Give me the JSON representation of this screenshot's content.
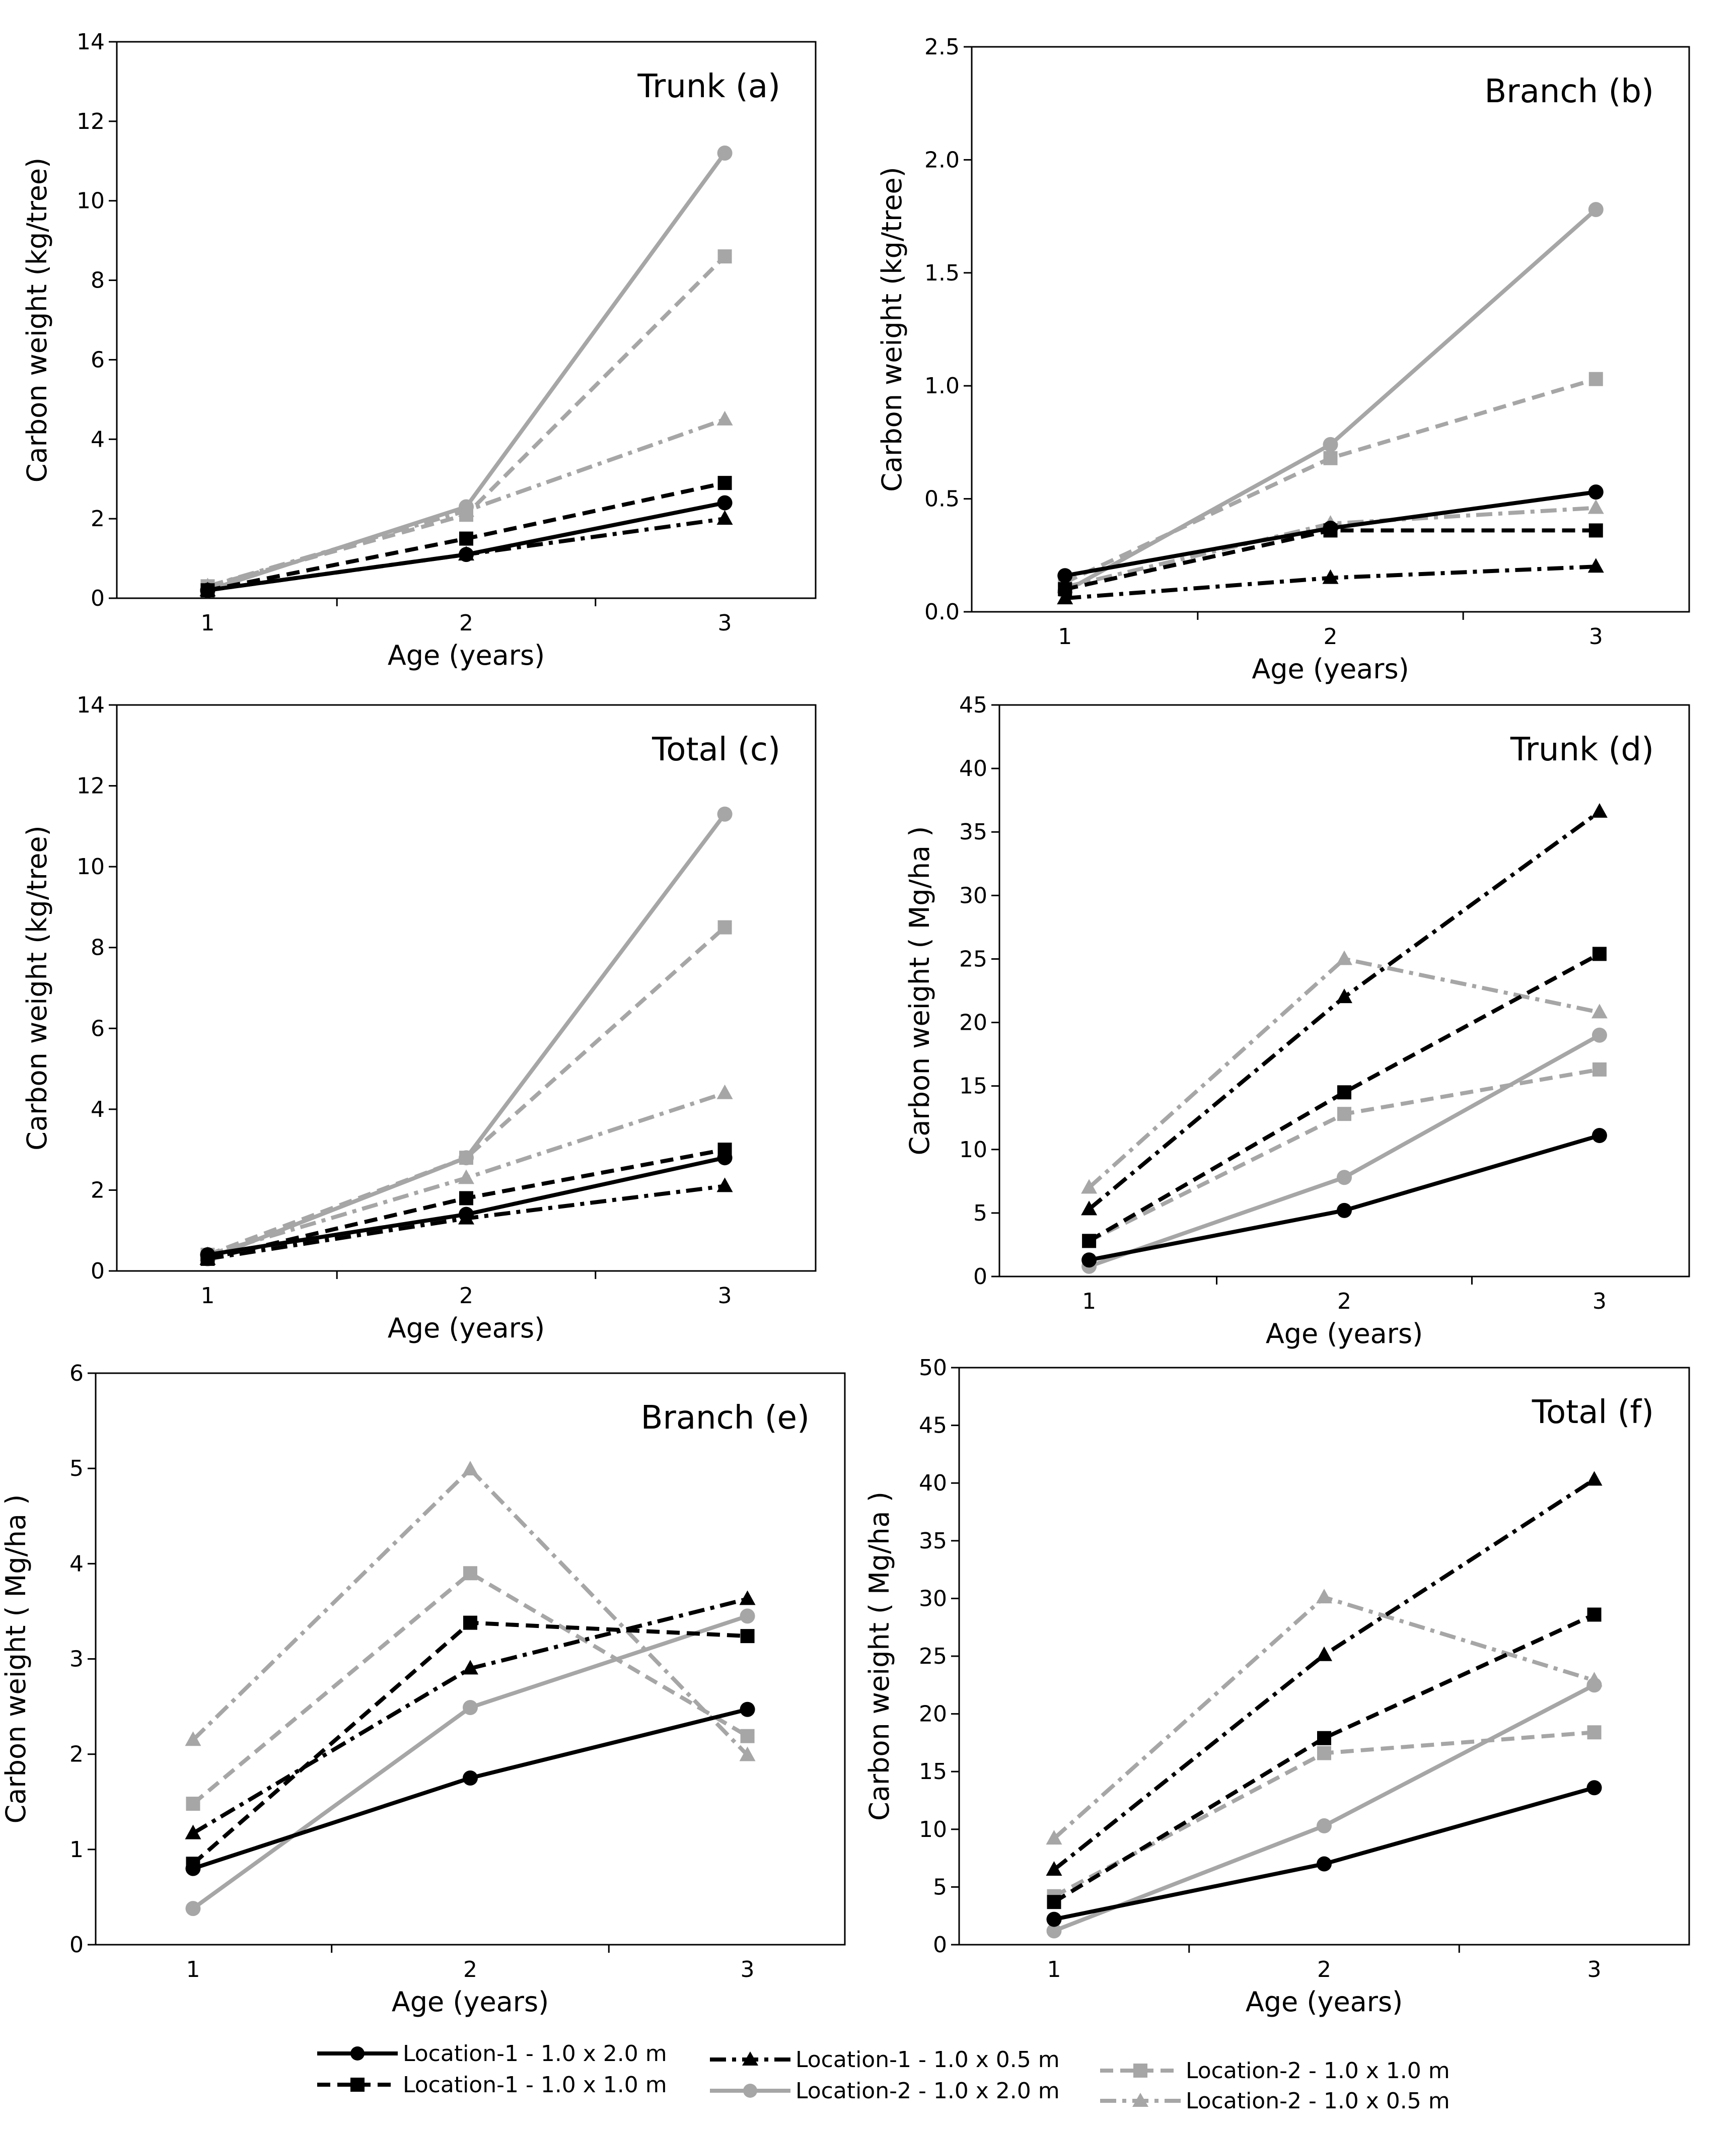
{
  "colors": {
    "location1": "#000000",
    "location2": "#a6a6a6"
  },
  "legend": {
    "entries": [
      {
        "label": "Location-1 - 1.0 x 2.0 m",
        "color": "#000000",
        "dash": "solid",
        "marker": "circle"
      },
      {
        "label": "Location-1 - 1.0 x 1.0 m",
        "color": "#000000",
        "dash": "dashed",
        "marker": "square"
      },
      {
        "label": "Location-1 - 1.0 x 0.5 m",
        "color": "#000000",
        "dash": "dashdot",
        "marker": "triangle"
      },
      {
        "label": "Location-2 - 1.0 x 2.0 m",
        "color": "#a6a6a6",
        "dash": "solid",
        "marker": "circle"
      },
      {
        "label": "Location-2 - 1.0 x 1.0 m",
        "color": "#a6a6a6",
        "dash": "dashed",
        "marker": "square"
      },
      {
        "label": "Location-2 - 1.0 x 0.5 m",
        "color": "#a6a6a6",
        "dash": "dashdot",
        "marker": "triangle"
      }
    ]
  },
  "chart_data": [
    {
      "type": "line",
      "title": "Trunk (a)",
      "xlabel": "Age (years)",
      "ylabel": "Carbon weight (kg/tree)",
      "x": [
        1,
        2,
        3
      ],
      "ylim": [
        0,
        14
      ],
      "yticks": [
        "0",
        "2",
        "4",
        "6",
        "8",
        "10",
        "12",
        "14"
      ],
      "series": [
        {
          "name": "Location-1 - 1.0 x 2.0 m",
          "values": [
            0.2,
            1.1,
            2.4
          ]
        },
        {
          "name": "Location-1 - 1.0 x 1.0 m",
          "values": [
            0.2,
            1.5,
            2.9
          ]
        },
        {
          "name": "Location-1 - 1.0 x 0.5 m",
          "values": [
            0.2,
            1.1,
            2.0
          ]
        },
        {
          "name": "Location-2 - 1.0 x 2.0 m",
          "values": [
            0.2,
            2.3,
            11.2
          ]
        },
        {
          "name": "Location-2 - 1.0 x 1.0 m",
          "values": [
            0.3,
            2.1,
            8.6
          ]
        },
        {
          "name": "Location-2 - 1.0 x 0.5 m",
          "values": [
            0.3,
            2.2,
            4.5
          ]
        }
      ]
    },
    {
      "type": "line",
      "title": "Branch (b)",
      "xlabel": "Age (years)",
      "ylabel": "Carbon weight (kg/tree)",
      "x": [
        1,
        2,
        3
      ],
      "ylim": [
        0,
        2.5
      ],
      "yticks": [
        "0.0",
        "0.5",
        "1.0",
        "1.5",
        "2.0",
        "2.5"
      ],
      "series": [
        {
          "name": "Location-1 - 1.0 x 2.0 m",
          "values": [
            0.16,
            0.37,
            0.53
          ]
        },
        {
          "name": "Location-1 - 1.0 x 1.0 m",
          "values": [
            0.1,
            0.36,
            0.36
          ]
        },
        {
          "name": "Location-1 - 1.0 x 0.5 m",
          "values": [
            0.06,
            0.15,
            0.2
          ]
        },
        {
          "name": "Location-2 - 1.0 x 2.0 m",
          "values": [
            0.09,
            0.74,
            1.78
          ]
        },
        {
          "name": "Location-2 - 1.0 x 1.0 m",
          "values": [
            0.13,
            0.68,
            1.03
          ]
        },
        {
          "name": "Location-2 - 1.0 x 0.5 m",
          "values": [
            0.11,
            0.39,
            0.46
          ]
        }
      ]
    },
    {
      "type": "line",
      "title": "Total (c)",
      "xlabel": "Age (years)",
      "ylabel": "Carbon weight (kg/tree)",
      "x": [
        1,
        2,
        3
      ],
      "ylim": [
        0,
        14
      ],
      "yticks": [
        "0",
        "2",
        "4",
        "6",
        "8",
        "10",
        "12",
        "14"
      ],
      "series": [
        {
          "name": "Location-1 - 1.0 x 2.0 m",
          "values": [
            0.4,
            1.4,
            2.8
          ]
        },
        {
          "name": "Location-1 - 1.0 x 1.0 m",
          "values": [
            0.3,
            1.8,
            3.0
          ]
        },
        {
          "name": "Location-1 - 1.0 x 0.5 m",
          "values": [
            0.3,
            1.3,
            2.1
          ]
        },
        {
          "name": "Location-2 - 1.0 x 2.0 m",
          "values": [
            0.3,
            2.8,
            11.3
          ]
        },
        {
          "name": "Location-2 - 1.0 x 1.0 m",
          "values": [
            0.4,
            2.8,
            8.5
          ]
        },
        {
          "name": "Location-2 - 1.0 x 0.5 m",
          "values": [
            0.4,
            2.3,
            4.4
          ]
        }
      ]
    },
    {
      "type": "line",
      "title": "Trunk (d)",
      "xlabel": "Age (years)",
      "ylabel": "Carbon weight ( Mg/ha )",
      "x": [
        1,
        2,
        3
      ],
      "ylim": [
        0,
        45
      ],
      "yticks": [
        "0",
        "5",
        "10",
        "15",
        "20",
        "25",
        "30",
        "35",
        "40",
        "45"
      ],
      "series": [
        {
          "name": "Location-1 - 1.0 x 2.0 m",
          "values": [
            1.3,
            5.2,
            11.1
          ]
        },
        {
          "name": "Location-1 - 1.0 x 1.0 m",
          "values": [
            2.8,
            14.5,
            25.4
          ]
        },
        {
          "name": "Location-1 - 1.0 x 0.5 m",
          "values": [
            5.3,
            22.0,
            36.6
          ]
        },
        {
          "name": "Location-2 - 1.0 x 2.0 m",
          "values": [
            0.8,
            7.8,
            19.0
          ]
        },
        {
          "name": "Location-2 - 1.0 x 1.0 m",
          "values": [
            2.8,
            12.8,
            16.3
          ]
        },
        {
          "name": "Location-2 - 1.0 x 0.5 m",
          "values": [
            7.0,
            25.0,
            20.8
          ]
        }
      ]
    },
    {
      "type": "line",
      "title": "Branch (e)",
      "xlabel": "Age (years)",
      "ylabel": "Carbon weight ( Mg/ha )",
      "x": [
        1,
        2,
        3
      ],
      "ylim": [
        0,
        6
      ],
      "yticks": [
        "0",
        "1",
        "2",
        "3",
        "4",
        "5",
        "6"
      ],
      "series": [
        {
          "name": "Location-1 - 1.0 x 2.0 m",
          "values": [
            0.8,
            1.75,
            2.47
          ]
        },
        {
          "name": "Location-1 - 1.0 x 1.0 m",
          "values": [
            0.85,
            3.38,
            3.24
          ]
        },
        {
          "name": "Location-1 - 1.0 x 0.5 m",
          "values": [
            1.17,
            2.9,
            3.63
          ]
        },
        {
          "name": "Location-2 - 1.0 x 2.0 m",
          "values": [
            0.38,
            2.49,
            3.45
          ]
        },
        {
          "name": "Location-2 - 1.0 x 1.0 m",
          "values": [
            1.48,
            3.9,
            2.19
          ]
        },
        {
          "name": "Location-2 - 1.0 x 0.5 m",
          "values": [
            2.15,
            4.99,
            1.99
          ]
        }
      ]
    },
    {
      "type": "line",
      "title": "Total (f)",
      "xlabel": "Age (years)",
      "ylabel": "Carbon weight ( Mg/ha )",
      "x": [
        1,
        2,
        3
      ],
      "ylim": [
        0,
        50
      ],
      "yticks": [
        "0",
        "5",
        "10",
        "15",
        "20",
        "25",
        "30",
        "35",
        "40",
        "45",
        "50"
      ],
      "series": [
        {
          "name": "Location-1 - 1.0 x 2.0 m",
          "values": [
            2.2,
            7.0,
            13.6
          ]
        },
        {
          "name": "Location-1 - 1.0 x 1.0 m",
          "values": [
            3.7,
            17.9,
            28.6
          ]
        },
        {
          "name": "Location-1 - 1.0 x 0.5 m",
          "values": [
            6.5,
            25.1,
            40.3
          ]
        },
        {
          "name": "Location-2 - 1.0 x 2.0 m",
          "values": [
            1.2,
            10.3,
            22.5
          ]
        },
        {
          "name": "Location-2 - 1.0 x 1.0 m",
          "values": [
            4.2,
            16.6,
            18.4
          ]
        },
        {
          "name": "Location-2 - 1.0 x 0.5 m",
          "values": [
            9.2,
            30.1,
            22.9
          ]
        }
      ]
    }
  ]
}
